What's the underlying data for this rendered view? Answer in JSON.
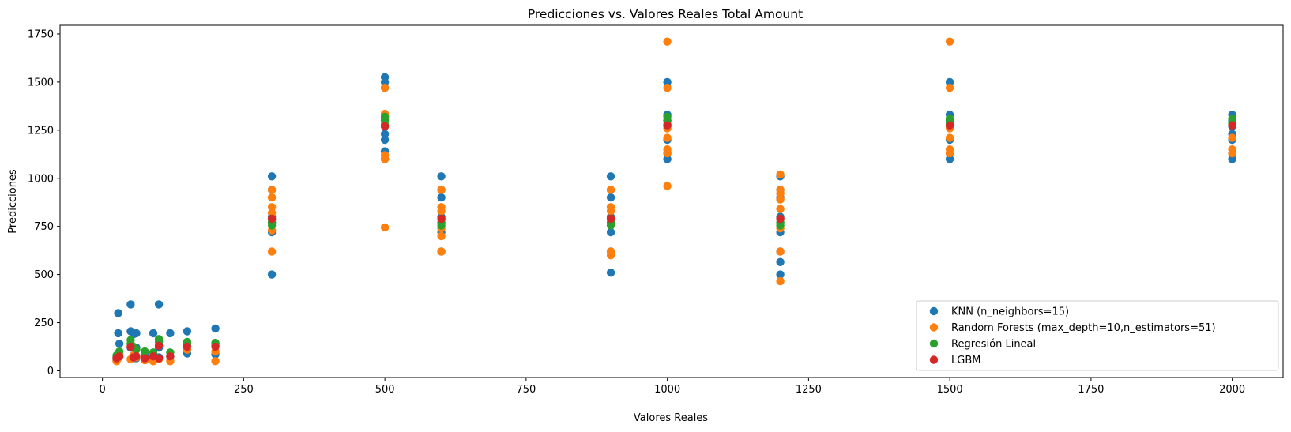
{
  "chart_data": {
    "type": "scatter",
    "title": "Predicciones vs. Valores Reales Total Amount",
    "xlabel": "Valores Reales",
    "ylabel": "Predicciones",
    "xlim": [
      -75,
      2090
    ],
    "ylim": [
      -35,
      1795
    ],
    "xticks": [
      0,
      250,
      500,
      750,
      1000,
      1250,
      1500,
      1750,
      2000
    ],
    "yticks": [
      0,
      250,
      500,
      750,
      1000,
      1250,
      1500,
      1750
    ],
    "grid": false,
    "legend_position": "lower-right",
    "series": [
      {
        "name": "KNN (n_neighbors=15)",
        "color": "#1f77b4",
        "points": [
          [
            25,
            55
          ],
          [
            25,
            70
          ],
          [
            28,
            195
          ],
          [
            28,
            300
          ],
          [
            30,
            140
          ],
          [
            50,
            345
          ],
          [
            50,
            205
          ],
          [
            50,
            120
          ],
          [
            55,
            190
          ],
          [
            60,
            65
          ],
          [
            60,
            195
          ],
          [
            60,
            120
          ],
          [
            75,
            60
          ],
          [
            75,
            85
          ],
          [
            90,
            195
          ],
          [
            90,
            60
          ],
          [
            100,
            345
          ],
          [
            100,
            120
          ],
          [
            100,
            70
          ],
          [
            120,
            195
          ],
          [
            120,
            75
          ],
          [
            150,
            205
          ],
          [
            150,
            90
          ],
          [
            150,
            130
          ],
          [
            200,
            220
          ],
          [
            200,
            130
          ],
          [
            200,
            85
          ],
          [
            300,
            1010
          ],
          [
            300,
            940
          ],
          [
            300,
            500
          ],
          [
            300,
            720
          ],
          [
            300,
            800
          ],
          [
            300,
            770
          ],
          [
            500,
            1525
          ],
          [
            500,
            1500
          ],
          [
            500,
            1470
          ],
          [
            500,
            1310
          ],
          [
            500,
            1270
          ],
          [
            500,
            1230
          ],
          [
            500,
            1200
          ],
          [
            500,
            1140
          ],
          [
            500,
            1100
          ],
          [
            600,
            1010
          ],
          [
            600,
            940
          ],
          [
            600,
            900
          ],
          [
            600,
            800
          ],
          [
            600,
            720
          ],
          [
            600,
            620
          ],
          [
            900,
            1010
          ],
          [
            900,
            940
          ],
          [
            900,
            900
          ],
          [
            900,
            800
          ],
          [
            900,
            720
          ],
          [
            900,
            620
          ],
          [
            900,
            510
          ],
          [
            1000,
            1500
          ],
          [
            1000,
            1330
          ],
          [
            1000,
            1300
          ],
          [
            1000,
            1270
          ],
          [
            1000,
            1200
          ],
          [
            1000,
            1130
          ],
          [
            1000,
            1100
          ],
          [
            1200,
            1010
          ],
          [
            1200,
            940
          ],
          [
            1200,
            900
          ],
          [
            1200,
            800
          ],
          [
            1200,
            720
          ],
          [
            1200,
            620
          ],
          [
            1200,
            565
          ],
          [
            1200,
            500
          ],
          [
            1500,
            1500
          ],
          [
            1500,
            1330
          ],
          [
            1500,
            1300
          ],
          [
            1500,
            1270
          ],
          [
            1500,
            1200
          ],
          [
            1500,
            1130
          ],
          [
            1500,
            1100
          ],
          [
            2000,
            1330
          ],
          [
            2000,
            1300
          ],
          [
            2000,
            1270
          ],
          [
            2000,
            1230
          ],
          [
            2000,
            1200
          ],
          [
            2000,
            1130
          ],
          [
            2000,
            1100
          ]
        ]
      },
      {
        "name": "Random Forests (max_depth=10,n_estimators=51)",
        "color": "#ff7f0e",
        "points": [
          [
            25,
            50
          ],
          [
            28,
            65
          ],
          [
            30,
            90
          ],
          [
            50,
            60
          ],
          [
            55,
            80
          ],
          [
            60,
            70
          ],
          [
            75,
            55
          ],
          [
            90,
            50
          ],
          [
            100,
            60
          ],
          [
            120,
            50
          ],
          [
            150,
            110
          ],
          [
            200,
            50
          ],
          [
            200,
            100
          ],
          [
            300,
            940
          ],
          [
            300,
            900
          ],
          [
            300,
            850
          ],
          [
            300,
            820
          ],
          [
            300,
            730
          ],
          [
            300,
            620
          ],
          [
            500,
            1470
          ],
          [
            500,
            1335
          ],
          [
            500,
            1310
          ],
          [
            500,
            1120
          ],
          [
            500,
            1100
          ],
          [
            500,
            745
          ],
          [
            600,
            940
          ],
          [
            600,
            850
          ],
          [
            600,
            830
          ],
          [
            600,
            740
          ],
          [
            600,
            700
          ],
          [
            600,
            620
          ],
          [
            900,
            940
          ],
          [
            900,
            850
          ],
          [
            900,
            830
          ],
          [
            900,
            620
          ],
          [
            900,
            600
          ],
          [
            1000,
            1710
          ],
          [
            1000,
            1470
          ],
          [
            1000,
            1260
          ],
          [
            1000,
            1210
          ],
          [
            1000,
            1150
          ],
          [
            1000,
            1130
          ],
          [
            1000,
            960
          ],
          [
            1200,
            1020
          ],
          [
            1200,
            940
          ],
          [
            1200,
            920
          ],
          [
            1200,
            890
          ],
          [
            1200,
            840
          ],
          [
            1200,
            740
          ],
          [
            1200,
            620
          ],
          [
            1200,
            465
          ],
          [
            1500,
            1710
          ],
          [
            1500,
            1470
          ],
          [
            1500,
            1260
          ],
          [
            1500,
            1210
          ],
          [
            1500,
            1150
          ],
          [
            1500,
            1130
          ],
          [
            2000,
            1210
          ],
          [
            2000,
            1150
          ],
          [
            2000,
            1130
          ]
        ]
      },
      {
        "name": "Regresión Lineal",
        "color": "#2ca02c",
        "points": [
          [
            25,
            80
          ],
          [
            28,
            90
          ],
          [
            30,
            100
          ],
          [
            50,
            160
          ],
          [
            50,
            140
          ],
          [
            55,
            125
          ],
          [
            60,
            110
          ],
          [
            75,
            100
          ],
          [
            90,
            95
          ],
          [
            100,
            165
          ],
          [
            100,
            150
          ],
          [
            120,
            95
          ],
          [
            150,
            150
          ],
          [
            150,
            140
          ],
          [
            200,
            145
          ],
          [
            200,
            140
          ],
          [
            300,
            790
          ],
          [
            300,
            770
          ],
          [
            300,
            755
          ],
          [
            500,
            1320
          ],
          [
            500,
            1300
          ],
          [
            500,
            1280
          ],
          [
            600,
            790
          ],
          [
            600,
            770
          ],
          [
            600,
            755
          ],
          [
            900,
            790
          ],
          [
            900,
            770
          ],
          [
            900,
            755
          ],
          [
            1000,
            1320
          ],
          [
            1000,
            1300
          ],
          [
            1000,
            1280
          ],
          [
            1200,
            790
          ],
          [
            1200,
            770
          ],
          [
            1200,
            755
          ],
          [
            1500,
            1310
          ],
          [
            1500,
            1290
          ],
          [
            1500,
            1280
          ],
          [
            2000,
            1310
          ],
          [
            2000,
            1290
          ],
          [
            2000,
            1280
          ]
        ]
      },
      {
        "name": "LGBM",
        "color": "#d62728",
        "points": [
          [
            25,
            65
          ],
          [
            30,
            75
          ],
          [
            50,
            125
          ],
          [
            55,
            70
          ],
          [
            60,
            75
          ],
          [
            75,
            65
          ],
          [
            90,
            75
          ],
          [
            100,
            130
          ],
          [
            100,
            65
          ],
          [
            120,
            75
          ],
          [
            150,
            125
          ],
          [
            200,
            125
          ],
          [
            300,
            790
          ],
          [
            500,
            1270
          ],
          [
            600,
            790
          ],
          [
            900,
            790
          ],
          [
            1000,
            1275
          ],
          [
            1200,
            790
          ],
          [
            1500,
            1275
          ],
          [
            2000,
            1275
          ]
        ]
      }
    ]
  }
}
